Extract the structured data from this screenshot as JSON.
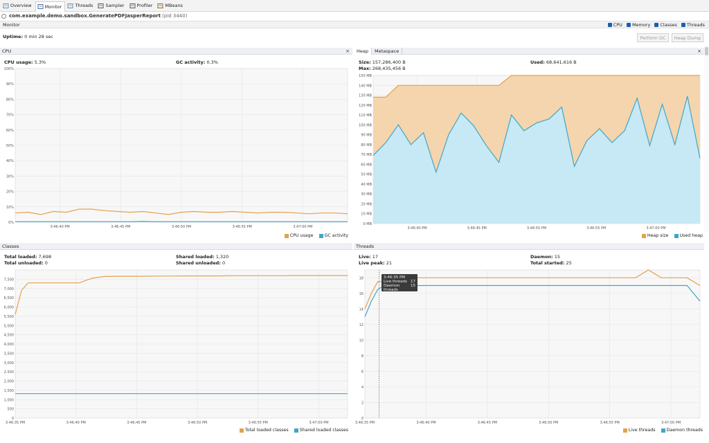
{
  "tabs": [
    {
      "label": "Overview",
      "icon": "overview-icon",
      "color": "#6a8caf"
    },
    {
      "label": "Monitor",
      "icon": "monitor-icon",
      "color": "#4a6fa0",
      "active": true
    },
    {
      "label": "Threads",
      "icon": "threads-icon",
      "color": "#6a8caf"
    },
    {
      "label": "Sampler",
      "icon": "sampler-icon",
      "color": "#555"
    },
    {
      "label": "Profiler",
      "icon": "profiler-icon",
      "color": "#555"
    },
    {
      "label": "MBeans",
      "icon": "mbeans-icon",
      "color": "#8a6a2a"
    }
  ],
  "app": {
    "name": "com.example.demo.sandbox.GeneratePDFJasperReport",
    "pid": "(pid 3440)"
  },
  "monitor": {
    "title": "Monitor",
    "checks": [
      "CPU",
      "Memory",
      "Classes",
      "Threads"
    ],
    "uptime_label": "Uptime:",
    "uptime_value": "0 min 28 sec",
    "perform_gc": "Perform GC",
    "heap_dump": "Heap Dump"
  },
  "colors": {
    "orange": "#e5a04a",
    "blue": "#3fa6c8",
    "orange_fill": "#f5d5ad",
    "blue_fill": "#c7e8f5"
  },
  "cpu": {
    "title": "CPU",
    "close": "×",
    "usage_label": "CPU usage:",
    "usage_value": "5.3%",
    "gc_label": "GC activity:",
    "gc_value": "0.3%",
    "legend": [
      "CPU usage",
      "GC activity"
    ]
  },
  "heap": {
    "tabs": [
      "Heap",
      "Metaspace"
    ],
    "close": "×",
    "size_label": "Size:",
    "size_value": "157,286,400 B",
    "max_label": "Max:",
    "max_value": "268,435,456 B",
    "used_label": "Used:",
    "used_value": "68,641,616 B",
    "legend": [
      "Heap size",
      "Used heap"
    ]
  },
  "classes": {
    "title": "Classes",
    "total_loaded_label": "Total loaded:",
    "total_loaded_value": "7,698",
    "total_unloaded_label": "Total unloaded:",
    "total_unloaded_value": "0",
    "shared_loaded_label": "Shared loaded:",
    "shared_loaded_value": "1,320",
    "shared_unloaded_label": "Shared unloaded:",
    "shared_unloaded_value": "0",
    "legend": [
      "Total loaded classes",
      "Shared loaded classes"
    ]
  },
  "threads": {
    "title": "Threads",
    "live_label": "Live:",
    "live_value": "17",
    "peak_label": "Live peak:",
    "peak_value": "21",
    "daemon_label": "Daemon:",
    "daemon_value": "15",
    "started_label": "Total started:",
    "started_value": "25",
    "legend": [
      "Live threads",
      "Daemon threads"
    ],
    "tooltip": {
      "time": "3:46:35 PM",
      "rows": [
        [
          "Live threads",
          "17"
        ],
        [
          "Daemon threads",
          "15"
        ]
      ]
    }
  },
  "chart_data": [
    {
      "type": "line",
      "name": "CPU",
      "ylim": [
        0,
        100
      ],
      "yticks": [
        "0%",
        "10%",
        "20%",
        "30%",
        "40%",
        "50%",
        "60%",
        "70%",
        "80%",
        "90%",
        "100%"
      ],
      "xticks": [
        "3:46:40 PM",
        "3:46:45 PM",
        "3:46:50 PM",
        "3:46:55 PM",
        "3:47:00 PM"
      ],
      "x": [
        0,
        1,
        2,
        3,
        4,
        5,
        6,
        7,
        8,
        9,
        10,
        11,
        12,
        13,
        14,
        15,
        16,
        17,
        18,
        19,
        20,
        21,
        22,
        23,
        24,
        25,
        26
      ],
      "series": [
        {
          "name": "CPU usage",
          "values": [
            6,
            6.5,
            5,
            7,
            6.5,
            8.5,
            8.5,
            7.5,
            7,
            6.5,
            7,
            6,
            5,
            6.5,
            7,
            6.5,
            6.5,
            7,
            6.5,
            6,
            6.5,
            6.5,
            6,
            5.5,
            6,
            6,
            5.5
          ]
        },
        {
          "name": "GC activity",
          "values": [
            0.3,
            0.3,
            0.3,
            0.3,
            0.3,
            0.3,
            0.3,
            0.3,
            0.3,
            0.3,
            0.5,
            0.3,
            0.3,
            0.3,
            0.3,
            0.3,
            0.3,
            0.3,
            0.3,
            0.3,
            0.3,
            0.3,
            0.3,
            0.3,
            0.3,
            0.3,
            0.3
          ]
        }
      ]
    },
    {
      "type": "area",
      "name": "Heap",
      "ylim": [
        0,
        150
      ],
      "yticks": [
        "0 MB",
        "10 MB",
        "20 MB",
        "30 MB",
        "40 MB",
        "50 MB",
        "60 MB",
        "70 MB",
        "80 MB",
        "90 MB",
        "100 MB",
        "110 MB",
        "120 MB",
        "130 MB",
        "140 MB",
        "150 MB"
      ],
      "xticks": [
        "3:46:40 PM",
        "3:46:45 PM",
        "3:46:50 PM",
        "3:46:55 PM",
        "3:47:00 PM"
      ],
      "x": [
        0,
        1,
        2,
        3,
        4,
        5,
        6,
        7,
        8,
        9,
        10,
        11,
        12,
        13,
        14,
        15,
        16,
        17,
        18,
        19,
        20,
        21,
        22,
        23,
        24,
        25,
        26
      ],
      "series": [
        {
          "name": "Heap size",
          "values": [
            128,
            128,
            140,
            140,
            140,
            140,
            140,
            140,
            140,
            140,
            140,
            150,
            150,
            150,
            150,
            150,
            150,
            150,
            150,
            150,
            150,
            150,
            150,
            150,
            150,
            150,
            150
          ]
        },
        {
          "name": "Used heap",
          "values": [
            69,
            82,
            100,
            80,
            92,
            52,
            90,
            112,
            99,
            79,
            62,
            110,
            94,
            102,
            106,
            118,
            58,
            84,
            96,
            82,
            94,
            127,
            79,
            121,
            80,
            129,
            66
          ]
        }
      ]
    },
    {
      "type": "line",
      "name": "Classes",
      "ylim": [
        0,
        8000
      ],
      "yticks": [
        "0",
        "500",
        "1,000",
        "1,500",
        "2,000",
        "2,500",
        "3,000",
        "3,500",
        "4,000",
        "4,500",
        "5,000",
        "5,500",
        "6,000",
        "6,500",
        "7,000",
        "7,500"
      ],
      "xticks": [
        "3:46:35 PM",
        "3:46:40 PM",
        "3:46:45 PM",
        "3:46:50 PM",
        "3:46:55 PM",
        "3:47:00 PM"
      ],
      "x": [
        0,
        0.5,
        1,
        1.5,
        2,
        3,
        4,
        5,
        6,
        7,
        8,
        9,
        10,
        11,
        12,
        13,
        14,
        15,
        16,
        17,
        18,
        19,
        20,
        21,
        22,
        23,
        24,
        25,
        26
      ],
      "series": [
        {
          "name": "Total loaded classes",
          "values": [
            5600,
            6900,
            7300,
            7300,
            7300,
            7300,
            7300,
            7300,
            7550,
            7650,
            7660,
            7660,
            7660,
            7670,
            7670,
            7680,
            7680,
            7680,
            7680,
            7690,
            7690,
            7690,
            7690,
            7690,
            7698,
            7698,
            7698,
            7698,
            7698
          ]
        },
        {
          "name": "Shared loaded classes",
          "values": [
            1320,
            1320,
            1320,
            1320,
            1320,
            1320,
            1320,
            1320,
            1320,
            1320,
            1320,
            1320,
            1320,
            1320,
            1320,
            1320,
            1320,
            1320,
            1320,
            1320,
            1320,
            1320,
            1320,
            1320,
            1320,
            1320,
            1320,
            1320,
            1320
          ]
        }
      ]
    },
    {
      "type": "line",
      "name": "Threads",
      "ylim": [
        0,
        19
      ],
      "yticks": [
        "0",
        "2",
        "4",
        "6",
        "8",
        "10",
        "12",
        "14",
        "16",
        "18"
      ],
      "xticks": [
        "3:46:35 PM",
        "3:46:40 PM",
        "3:46:45 PM",
        "3:46:50 PM",
        "3:46:55 PM",
        "3:47:00 PM"
      ],
      "x": [
        0,
        0.5,
        1,
        1.5,
        2,
        3,
        4,
        5,
        6,
        7,
        8,
        9,
        10,
        11,
        12,
        13,
        14,
        15,
        16,
        17,
        18,
        19,
        20,
        21,
        22,
        23,
        24,
        25,
        26
      ],
      "series": [
        {
          "name": "Live threads",
          "values": [
            14,
            16,
            17.5,
            17.5,
            18,
            18,
            18,
            18,
            18,
            18,
            18,
            18,
            18,
            18,
            18,
            18,
            18,
            18,
            18,
            18,
            18,
            18,
            18,
            18,
            19,
            18,
            18,
            18,
            17
          ]
        },
        {
          "name": "Daemon threads",
          "values": [
            13,
            15,
            16.5,
            17,
            17,
            17,
            17,
            17,
            17,
            17,
            17,
            17,
            17,
            17,
            17,
            17,
            17,
            17,
            17,
            17,
            17,
            17,
            17,
            17,
            17,
            17,
            17,
            17,
            15
          ]
        }
      ]
    }
  ]
}
